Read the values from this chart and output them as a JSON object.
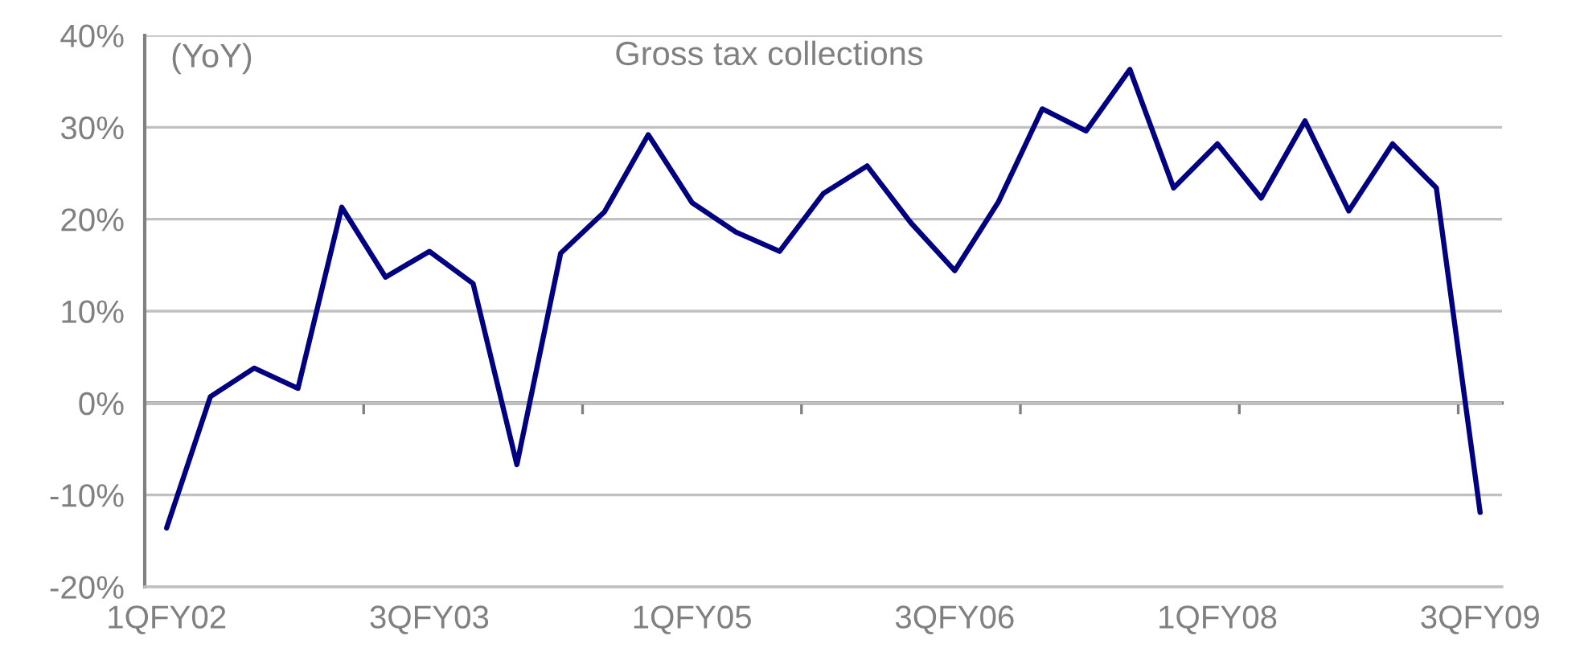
{
  "chart_data": {
    "type": "line",
    "title": "Gross tax collections",
    "ylabel": "(YoY)",
    "categories": [
      "1QFY02",
      null,
      null,
      null,
      null,
      null,
      "3QFY03",
      null,
      null,
      null,
      null,
      null,
      "1QFY05",
      null,
      null,
      null,
      null,
      null,
      "3QFY06",
      null,
      null,
      null,
      null,
      null,
      "1QFY08",
      null,
      null,
      null,
      null,
      null,
      "3QFY09"
    ],
    "series": [
      {
        "color": "#000080",
        "values": [
          -13.6,
          0.7,
          3.8,
          1.6,
          21.3,
          13.7,
          16.5,
          13.0,
          -6.7,
          16.3,
          20.8,
          29.2,
          21.8,
          18.6,
          16.5,
          22.8,
          25.8,
          19.6,
          14.4,
          21.9,
          32.0,
          29.6,
          36.3,
          23.4,
          28.2,
          22.3,
          30.7,
          20.9,
          28.2,
          23.4,
          -11.9
        ]
      }
    ],
    "ylim": [
      -20,
      40
    ],
    "yticks": [
      {
        "value": -20,
        "label": "-20%"
      },
      {
        "value": -10,
        "label": "-10%"
      },
      {
        "value": 0,
        "label": "0%"
      },
      {
        "value": 10,
        "label": "10%"
      },
      {
        "value": 20,
        "label": "20%"
      },
      {
        "value": 30,
        "label": "30%"
      },
      {
        "value": 40,
        "label": "40%"
      }
    ],
    "grid": "y",
    "marker": "none",
    "line_style": "solid"
  }
}
